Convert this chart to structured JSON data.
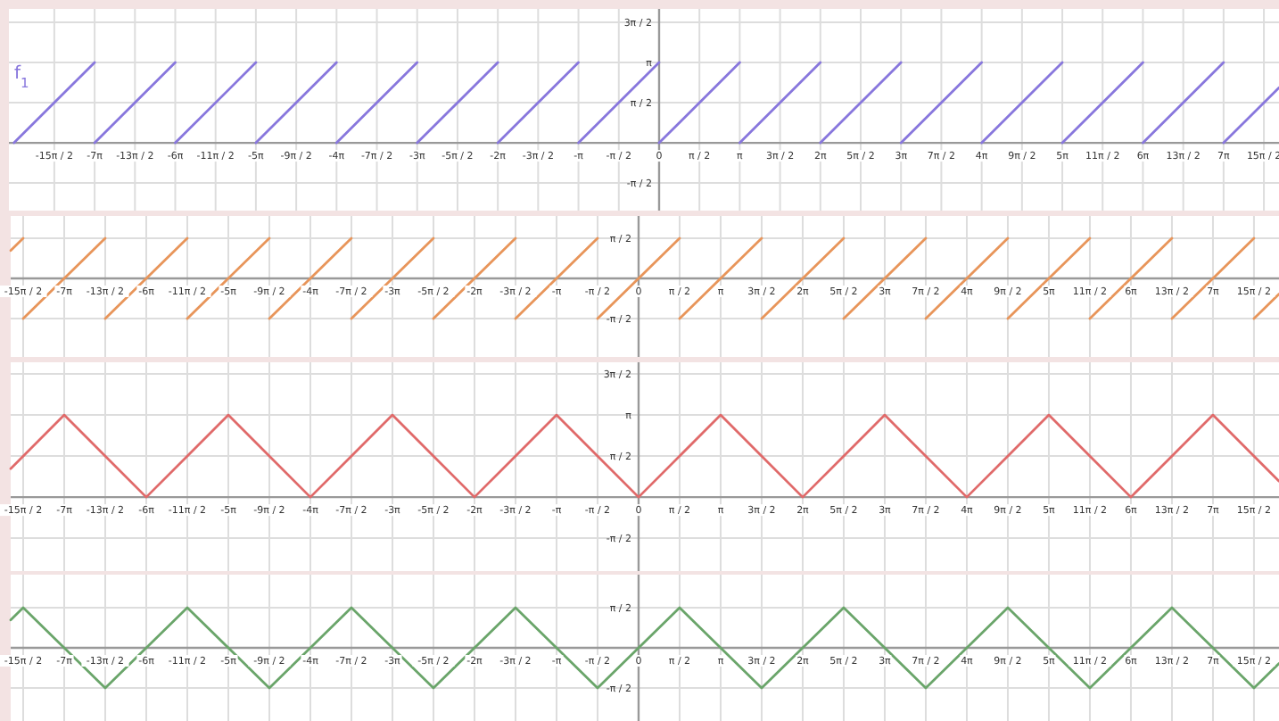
{
  "chart_data": [
    {
      "type": "line",
      "xlim": [
        -25.33,
        24.15
      ],
      "ylim": [
        -2.65,
        5.24
      ],
      "grid": true,
      "xticks": [
        {
          "value": -23.5619,
          "label": "-15π / 2"
        },
        {
          "value": -21.9911,
          "label": "-7π"
        },
        {
          "value": -20.4204,
          "label": "-13π / 2"
        },
        {
          "value": -18.8496,
          "label": "-6π"
        },
        {
          "value": -17.2788,
          "label": "-11π / 2"
        },
        {
          "value": -15.708,
          "label": "-5π"
        },
        {
          "value": -14.1372,
          "label": "-9π / 2"
        },
        {
          "value": -12.5664,
          "label": "-4π"
        },
        {
          "value": -10.9956,
          "label": "-7π / 2"
        },
        {
          "value": -9.4248,
          "label": "-3π"
        },
        {
          "value": -7.854,
          "label": "-5π / 2"
        },
        {
          "value": -6.2832,
          "label": "-2π"
        },
        {
          "value": -4.7124,
          "label": "-3π / 2"
        },
        {
          "value": -3.1416,
          "label": "-π"
        },
        {
          "value": -1.5708,
          "label": "-π / 2"
        },
        {
          "value": 0,
          "label": "0"
        },
        {
          "value": 1.5708,
          "label": "π / 2"
        },
        {
          "value": 3.1416,
          "label": "π"
        },
        {
          "value": 4.7124,
          "label": "3π / 2"
        },
        {
          "value": 6.2832,
          "label": "2π"
        },
        {
          "value": 7.854,
          "label": "5π / 2"
        },
        {
          "value": 9.4248,
          "label": "3π"
        },
        {
          "value": 10.9956,
          "label": "7π / 2"
        },
        {
          "value": 12.5664,
          "label": "4π"
        },
        {
          "value": 14.1372,
          "label": "9π / 2"
        },
        {
          "value": 15.708,
          "label": "5π"
        },
        {
          "value": 17.2788,
          "label": "11π / 2"
        },
        {
          "value": 18.8496,
          "label": "6π"
        },
        {
          "value": 20.4204,
          "label": "13π / 2"
        },
        {
          "value": 21.9911,
          "label": "7π"
        },
        {
          "value": 23.5619,
          "label": "15π / 2"
        }
      ],
      "yticks": [
        {
          "value": -1.5708,
          "label": "-π / 2"
        },
        {
          "value": 1.5708,
          "label": "π / 2"
        },
        {
          "value": 3.1416,
          "label": "π"
        },
        {
          "value": 4.7124,
          "label": "3π / 2"
        }
      ],
      "series": [
        {
          "name": "f$_{1}$",
          "color": "#8877dd",
          "x": [
            -25.1327,
            -21.9911
          ],
          "values": [
            0,
            3.1416
          ]
        },
        {
          "color": "#8877dd",
          "x": [
            -21.9911,
            -18.8496
          ],
          "values": [
            0,
            3.1416
          ]
        },
        {
          "color": "#8877dd",
          "x": [
            -18.8496,
            -15.708
          ],
          "values": [
            0,
            3.1416
          ]
        },
        {
          "color": "#8877dd",
          "x": [
            -15.708,
            -12.5664
          ],
          "values": [
            0,
            3.1416
          ]
        },
        {
          "color": "#8877dd",
          "x": [
            -12.5664,
            -9.4248
          ],
          "values": [
            0,
            3.1416
          ]
        },
        {
          "color": "#8877dd",
          "x": [
            -9.4248,
            -6.2832
          ],
          "values": [
            0,
            3.1416
          ]
        },
        {
          "color": "#8877dd",
          "x": [
            -6.2832,
            -3.1416
          ],
          "values": [
            0,
            3.1416
          ]
        },
        {
          "color": "#8877dd",
          "x": [
            -3.1416,
            0
          ],
          "values": [
            0,
            3.1416
          ]
        },
        {
          "color": "#8877dd",
          "x": [
            0,
            3.1416
          ],
          "values": [
            0,
            3.1416
          ]
        },
        {
          "color": "#8877dd",
          "x": [
            3.1416,
            6.2832
          ],
          "values": [
            0,
            3.1416
          ]
        },
        {
          "color": "#8877dd",
          "x": [
            6.2832,
            9.4248
          ],
          "values": [
            0,
            3.1416
          ]
        },
        {
          "color": "#8877dd",
          "x": [
            9.4248,
            12.5664
          ],
          "values": [
            0,
            3.1416
          ]
        },
        {
          "color": "#8877dd",
          "x": [
            12.5664,
            15.708
          ],
          "values": [
            0,
            3.1416
          ]
        },
        {
          "color": "#8877dd",
          "x": [
            15.708,
            18.8496
          ],
          "values": [
            0,
            3.1416
          ]
        },
        {
          "color": "#8877dd",
          "x": [
            18.8496,
            21.9911
          ],
          "values": [
            0,
            3.1416
          ]
        },
        {
          "color": "#8877dd",
          "x": [
            21.9911,
            24.15
          ],
          "values": [
            0,
            2.16
          ]
        }
      ]
    },
    {
      "type": "line",
      "xlim": [
        -24.04,
        24.52
      ],
      "ylim": [
        -3.07,
        2.44
      ],
      "grid": true,
      "xticks": [
        {
          "value": -23.5619,
          "label": "-15π / 2"
        },
        {
          "value": -21.9911,
          "label": "-7π"
        },
        {
          "value": -20.4204,
          "label": "-13π / 2"
        },
        {
          "value": -18.8496,
          "label": "-6π"
        },
        {
          "value": -17.2788,
          "label": "-11π / 2"
        },
        {
          "value": -15.708,
          "label": "-5π"
        },
        {
          "value": -14.1372,
          "label": "-9π / 2"
        },
        {
          "value": -12.5664,
          "label": "-4π"
        },
        {
          "value": -10.9956,
          "label": "-7π / 2"
        },
        {
          "value": -9.4248,
          "label": "-3π"
        },
        {
          "value": -7.854,
          "label": "-5π / 2"
        },
        {
          "value": -6.2832,
          "label": "-2π"
        },
        {
          "value": -4.7124,
          "label": "-3π / 2"
        },
        {
          "value": -3.1416,
          "label": "-π"
        },
        {
          "value": -1.5708,
          "label": "-π / 2"
        },
        {
          "value": 0,
          "label": "0"
        },
        {
          "value": 1.5708,
          "label": "π / 2"
        },
        {
          "value": 3.1416,
          "label": "π"
        },
        {
          "value": 4.7124,
          "label": "3π / 2"
        },
        {
          "value": 6.2832,
          "label": "2π"
        },
        {
          "value": 7.854,
          "label": "5π / 2"
        },
        {
          "value": 9.4248,
          "label": "3π"
        },
        {
          "value": 10.9956,
          "label": "7π / 2"
        },
        {
          "value": 12.5664,
          "label": "4π"
        },
        {
          "value": 14.1372,
          "label": "9π / 2"
        },
        {
          "value": 15.708,
          "label": "5π"
        },
        {
          "value": 17.2788,
          "label": "11π / 2"
        },
        {
          "value": 18.8496,
          "label": "6π"
        },
        {
          "value": 20.4204,
          "label": "13π / 2"
        },
        {
          "value": 21.9911,
          "label": "7π"
        },
        {
          "value": 23.5619,
          "label": "15π / 2"
        }
      ],
      "yticks": [
        {
          "value": -1.5708,
          "label": "-π / 2"
        },
        {
          "value": 1.5708,
          "label": "π / 2"
        }
      ],
      "series": [
        {
          "color": "#e8955a",
          "x": [
            -24.04,
            -23.5619
          ],
          "values": [
            1.09,
            1.5708
          ]
        },
        {
          "color": "#e8955a",
          "x": [
            -23.5619,
            -20.4204
          ],
          "values": [
            -1.5708,
            1.5708
          ]
        },
        {
          "color": "#e8955a",
          "x": [
            -20.4204,
            -17.2788
          ],
          "values": [
            -1.5708,
            1.5708
          ]
        },
        {
          "color": "#e8955a",
          "x": [
            -17.2788,
            -14.1372
          ],
          "values": [
            -1.5708,
            1.5708
          ]
        },
        {
          "color": "#e8955a",
          "x": [
            -14.1372,
            -10.9956
          ],
          "values": [
            -1.5708,
            1.5708
          ]
        },
        {
          "color": "#e8955a",
          "x": [
            -10.9956,
            -7.854
          ],
          "values": [
            -1.5708,
            1.5708
          ]
        },
        {
          "color": "#e8955a",
          "x": [
            -7.854,
            -4.7124
          ],
          "values": [
            -1.5708,
            1.5708
          ]
        },
        {
          "color": "#e8955a",
          "x": [
            -4.7124,
            -1.5708
          ],
          "values": [
            -1.5708,
            1.5708
          ]
        },
        {
          "color": "#e8955a",
          "x": [
            -1.5708,
            1.5708
          ],
          "values": [
            -1.5708,
            1.5708
          ]
        },
        {
          "color": "#e8955a",
          "x": [
            1.5708,
            4.7124
          ],
          "values": [
            -1.5708,
            1.5708
          ]
        },
        {
          "color": "#e8955a",
          "x": [
            4.7124,
            7.854
          ],
          "values": [
            -1.5708,
            1.5708
          ]
        },
        {
          "color": "#e8955a",
          "x": [
            7.854,
            10.9956
          ],
          "values": [
            -1.5708,
            1.5708
          ]
        },
        {
          "color": "#e8955a",
          "x": [
            10.9956,
            14.1372
          ],
          "values": [
            -1.5708,
            1.5708
          ]
        },
        {
          "color": "#e8955a",
          "x": [
            14.1372,
            17.2788
          ],
          "values": [
            -1.5708,
            1.5708
          ]
        },
        {
          "color": "#e8955a",
          "x": [
            17.2788,
            20.4204
          ],
          "values": [
            -1.5708,
            1.5708
          ]
        },
        {
          "color": "#e8955a",
          "x": [
            20.4204,
            23.5619
          ],
          "values": [
            -1.5708,
            1.5708
          ]
        },
        {
          "color": "#e8955a",
          "x": [
            23.5619,
            24.52
          ],
          "values": [
            -1.5708,
            -0.61
          ]
        }
      ]
    },
    {
      "type": "line",
      "xlim": [
        -24.04,
        24.52
      ],
      "ylim": [
        -2.83,
        5.16
      ],
      "grid": true,
      "xticks": [
        {
          "value": -23.5619,
          "label": "-15π / 2"
        },
        {
          "value": -21.9911,
          "label": "-7π"
        },
        {
          "value": -20.4204,
          "label": "-13π / 2"
        },
        {
          "value": -18.8496,
          "label": "-6π"
        },
        {
          "value": -17.2788,
          "label": "-11π / 2"
        },
        {
          "value": -15.708,
          "label": "-5π"
        },
        {
          "value": -14.1372,
          "label": "-9π / 2"
        },
        {
          "value": -12.5664,
          "label": "-4π"
        },
        {
          "value": -10.9956,
          "label": "-7π / 2"
        },
        {
          "value": -9.4248,
          "label": "-3π"
        },
        {
          "value": -7.854,
          "label": "-5π / 2"
        },
        {
          "value": -6.2832,
          "label": "-2π"
        },
        {
          "value": -4.7124,
          "label": "-3π / 2"
        },
        {
          "value": -3.1416,
          "label": "-π"
        },
        {
          "value": -1.5708,
          "label": "-π / 2"
        },
        {
          "value": 0,
          "label": "0"
        },
        {
          "value": 1.5708,
          "label": "π / 2"
        },
        {
          "value": 3.1416,
          "label": "π"
        },
        {
          "value": 4.7124,
          "label": "3π / 2"
        },
        {
          "value": 6.2832,
          "label": "2π"
        },
        {
          "value": 7.854,
          "label": "5π / 2"
        },
        {
          "value": 9.4248,
          "label": "3π"
        },
        {
          "value": 10.9956,
          "label": "7π / 2"
        },
        {
          "value": 12.5664,
          "label": "4π"
        },
        {
          "value": 14.1372,
          "label": "9π / 2"
        },
        {
          "value": 15.708,
          "label": "5π"
        },
        {
          "value": 17.2788,
          "label": "11π / 2"
        },
        {
          "value": 18.8496,
          "label": "6π"
        },
        {
          "value": 20.4204,
          "label": "13π / 2"
        },
        {
          "value": 21.9911,
          "label": "7π"
        },
        {
          "value": 23.5619,
          "label": "15π / 2"
        }
      ],
      "yticks": [
        {
          "value": -1.5708,
          "label": "-π / 2"
        },
        {
          "value": 1.5708,
          "label": "π / 2"
        },
        {
          "value": 3.1416,
          "label": "π"
        },
        {
          "value": 4.7124,
          "label": "3π / 2"
        }
      ],
      "series": [
        {
          "color": "#e06a6a",
          "x": [
            -24.04,
            -21.9911,
            -18.8496,
            -15.708,
            -12.5664,
            -9.4248,
            -6.2832,
            -3.1416,
            0,
            3.1416,
            6.2832,
            9.4248,
            12.5664,
            15.708,
            18.8496,
            21.9911,
            24.52
          ],
          "values": [
            1.09,
            3.1416,
            0,
            3.1416,
            0,
            3.1416,
            0,
            3.1416,
            0,
            3.1416,
            0,
            3.1416,
            0,
            3.1416,
            0,
            3.1416,
            0.61
          ]
        }
      ]
    },
    {
      "type": "line",
      "xlim": [
        -24.04,
        24.52
      ],
      "ylim": [
        -2.86,
        2.86
      ],
      "grid": true,
      "xticks": [
        {
          "value": -23.5619,
          "label": "-15π / 2"
        },
        {
          "value": -21.9911,
          "label": "-7π"
        },
        {
          "value": -20.4204,
          "label": "-13π / 2"
        },
        {
          "value": -18.8496,
          "label": "-6π"
        },
        {
          "value": -17.2788,
          "label": "-11π / 2"
        },
        {
          "value": -15.708,
          "label": "-5π"
        },
        {
          "value": -14.1372,
          "label": "-9π / 2"
        },
        {
          "value": -12.5664,
          "label": "-4π"
        },
        {
          "value": -10.9956,
          "label": "-7π / 2"
        },
        {
          "value": -9.4248,
          "label": "-3π"
        },
        {
          "value": -7.854,
          "label": "-5π / 2"
        },
        {
          "value": -6.2832,
          "label": "-2π"
        },
        {
          "value": -4.7124,
          "label": "-3π / 2"
        },
        {
          "value": -3.1416,
          "label": "-π"
        },
        {
          "value": -1.5708,
          "label": "-π / 2"
        },
        {
          "value": 0,
          "label": "0"
        },
        {
          "value": 1.5708,
          "label": "π / 2"
        },
        {
          "value": 3.1416,
          "label": "π"
        },
        {
          "value": 4.7124,
          "label": "3π / 2"
        },
        {
          "value": 6.2832,
          "label": "2π"
        },
        {
          "value": 7.854,
          "label": "5π / 2"
        },
        {
          "value": 9.4248,
          "label": "3π"
        },
        {
          "value": 10.9956,
          "label": "7π / 2"
        },
        {
          "value": 12.5664,
          "label": "4π"
        },
        {
          "value": 14.1372,
          "label": "9π / 2"
        },
        {
          "value": 15.708,
          "label": "5π"
        },
        {
          "value": 17.2788,
          "label": "11π / 2"
        },
        {
          "value": 18.8496,
          "label": "6π"
        },
        {
          "value": 20.4204,
          "label": "13π / 2"
        },
        {
          "value": 21.9911,
          "label": "7π"
        },
        {
          "value": 23.5619,
          "label": "15π / 2"
        }
      ],
      "yticks": [
        {
          "value": -1.5708,
          "label": "-π / 2"
        },
        {
          "value": 1.5708,
          "label": "π / 2"
        }
      ],
      "series": [
        {
          "color": "#6aa56a",
          "x": [
            -24.04,
            -23.5619,
            -20.4204,
            -17.2788,
            -14.1372,
            -10.9956,
            -7.854,
            -4.7124,
            -1.5708,
            1.5708,
            4.7124,
            7.854,
            10.9956,
            14.1372,
            17.2788,
            20.4204,
            23.5619,
            24.52
          ],
          "values": [
            1.09,
            1.5708,
            -1.5708,
            1.5708,
            -1.5708,
            1.5708,
            -1.5708,
            1.5708,
            -1.5708,
            1.5708,
            -1.5708,
            1.5708,
            -1.5708,
            1.5708,
            -1.5708,
            1.5708,
            -1.5708,
            -0.61
          ]
        }
      ]
    }
  ]
}
